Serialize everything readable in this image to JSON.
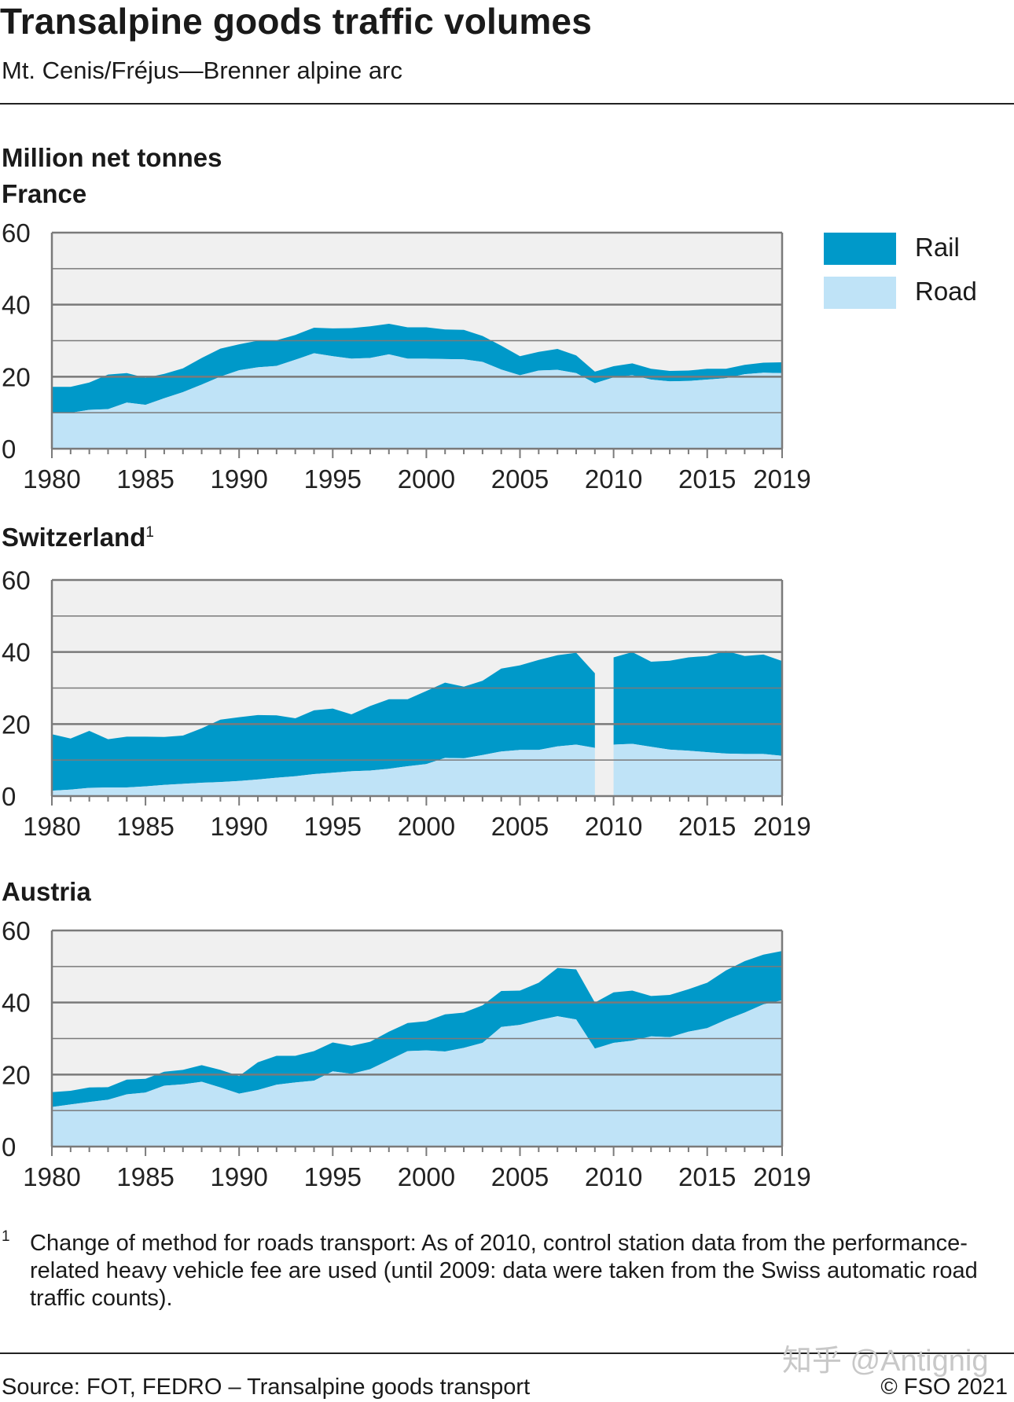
{
  "title": "Transalpine goods traffic volumes",
  "subtitle": "Mt. Cenis/Fréjus—Brenner alpine arc",
  "unit_label": "Million net tonnes",
  "colors": {
    "rail": "#0099c9",
    "road": "#bfe3f7",
    "plot_bg": "#f0f0f0",
    "grid": "#7a7a7a"
  },
  "legend": [
    {
      "key": "rail",
      "label": "Rail"
    },
    {
      "key": "road",
      "label": "Road"
    }
  ],
  "footnote_mark": "1",
  "footnote": "Change of method for roads transport: As of 2010, control station data from the performance-related heavy vehicle fee are used (until 2009: data were taken from the Swiss automatic road traffic counts).",
  "source": "Source: FOT, FEDRO – Transalpine goods transport",
  "copyright": "© FSO 2021",
  "watermark": "知乎 @Antignig",
  "chart_data": [
    {
      "type": "area",
      "stacked": true,
      "title": "France",
      "footnote_ref": "",
      "ylabel": "Million net tonnes",
      "ylim": [
        0,
        60
      ],
      "yticks": [
        0,
        20,
        40,
        60
      ],
      "xticks": [
        1980,
        1985,
        1990,
        1995,
        2000,
        2005,
        2010,
        2015,
        2019
      ],
      "grid": true,
      "legend_position": "right",
      "x": [
        1980,
        1981,
        1982,
        1983,
        1984,
        1985,
        1986,
        1987,
        1988,
        1989,
        1990,
        1991,
        1992,
        1993,
        1994,
        1995,
        1996,
        1997,
        1998,
        1999,
        2000,
        2001,
        2002,
        2003,
        2004,
        2005,
        2006,
        2007,
        2008,
        2009,
        2010,
        2011,
        2012,
        2013,
        2014,
        2015,
        2016,
        2017,
        2018,
        2019
      ],
      "series": [
        {
          "name": "Road",
          "values": [
            10,
            10,
            10.8,
            11,
            12.8,
            12.2,
            14,
            15.7,
            17.8,
            20,
            21.8,
            22.6,
            23,
            24.7,
            26.5,
            25.7,
            25,
            25.2,
            26.2,
            25,
            25,
            24.9,
            24.8,
            24.1,
            22,
            20.4,
            21.7,
            21.9,
            21,
            18.2,
            19.8,
            20.4,
            19.2,
            18.7,
            18.8,
            19.2,
            19.6,
            20.7,
            21.1,
            21
          ]
        },
        {
          "name": "Rail",
          "values": [
            7.2,
            7.2,
            7.6,
            9.6,
            8.2,
            7.5,
            6.8,
            6.6,
            7.4,
            7.8,
            7.2,
            7.4,
            7.1,
            6.9,
            7.1,
            7.7,
            8.5,
            8.8,
            8.5,
            8.7,
            8.7,
            8.2,
            8.2,
            7.2,
            6.6,
            5.3,
            5.2,
            5.8,
            4.9,
            3.2,
            3.1,
            3.3,
            3,
            2.9,
            2.9,
            3,
            2.6,
            2.6,
            2.8,
            3
          ]
        }
      ]
    },
    {
      "type": "area",
      "stacked": true,
      "title": "Switzerland",
      "footnote_ref": "1",
      "ylim": [
        0,
        60
      ],
      "yticks": [
        0,
        20,
        40,
        60
      ],
      "xticks": [
        1980,
        1985,
        1990,
        1995,
        2000,
        2005,
        2010,
        2015,
        2019
      ],
      "grid": true,
      "break_between": [
        2009,
        2010
      ],
      "x": [
        1980,
        1981,
        1982,
        1983,
        1984,
        1985,
        1986,
        1987,
        1988,
        1989,
        1990,
        1991,
        1992,
        1993,
        1994,
        1995,
        1996,
        1997,
        1998,
        1999,
        2000,
        2001,
        2002,
        2003,
        2004,
        2005,
        2006,
        2007,
        2008,
        2009,
        2010,
        2011,
        2012,
        2013,
        2014,
        2015,
        2016,
        2017,
        2018,
        2019
      ],
      "series": [
        {
          "name": "Road",
          "values": [
            1.5,
            1.8,
            2.3,
            2.4,
            2.4,
            2.7,
            3.1,
            3.4,
            3.7,
            3.9,
            4.2,
            4.6,
            5.1,
            5.5,
            6.1,
            6.5,
            6.9,
            7.1,
            7.6,
            8.3,
            8.9,
            10.6,
            10.5,
            11.4,
            12.4,
            12.8,
            12.8,
            13.8,
            14.3,
            13.4,
            14.3,
            14.5,
            13.7,
            12.9,
            12.6,
            12.2,
            11.8,
            11.7,
            11.7,
            11.2
          ]
        },
        {
          "name": "Rail",
          "values": [
            15.7,
            14.2,
            15.8,
            13.4,
            14.1,
            13.8,
            13.3,
            13.4,
            15.1,
            17.3,
            17.7,
            17.9,
            17.3,
            16.1,
            17.7,
            17.8,
            15.8,
            17.9,
            19.3,
            18.6,
            20.3,
            20.9,
            19.9,
            20.6,
            23,
            23.5,
            25,
            25.3,
            25.5,
            20.7,
            24.2,
            25.5,
            23.6,
            24.7,
            25.9,
            26.7,
            28.5,
            27.2,
            27.6,
            26.3
          ]
        }
      ]
    },
    {
      "type": "area",
      "stacked": true,
      "title": "Austria",
      "footnote_ref": "",
      "ylim": [
        0,
        60
      ],
      "yticks": [
        0,
        20,
        40,
        60
      ],
      "xticks": [
        1980,
        1985,
        1990,
        1995,
        2000,
        2005,
        2010,
        2015,
        2019
      ],
      "grid": true,
      "x": [
        1980,
        1981,
        1982,
        1983,
        1984,
        1985,
        1986,
        1987,
        1988,
        1989,
        1990,
        1991,
        1992,
        1993,
        1994,
        1995,
        1996,
        1997,
        1998,
        1999,
        2000,
        2001,
        2002,
        2003,
        2004,
        2005,
        2006,
        2007,
        2008,
        2009,
        2010,
        2011,
        2012,
        2013,
        2014,
        2015,
        2016,
        2017,
        2018,
        2019
      ],
      "series": [
        {
          "name": "Road",
          "values": [
            11,
            11.7,
            12.4,
            13,
            14.5,
            15,
            16.9,
            17.3,
            18,
            16.4,
            14.7,
            15.7,
            17.2,
            17.8,
            18.3,
            20.9,
            20.2,
            21.5,
            24,
            26.5,
            26.7,
            26.4,
            27.4,
            28.8,
            33.2,
            33.8,
            35.1,
            36.2,
            35.3,
            27.2,
            28.8,
            29.4,
            30.6,
            30.4,
            31.9,
            32.9,
            35.2,
            37.2,
            39.5,
            40.6
          ]
        },
        {
          "name": "Rail",
          "values": [
            4.1,
            3.8,
            4,
            3.5,
            4.1,
            3.8,
            3.9,
            4,
            4.6,
            4.9,
            4.9,
            7.7,
            8,
            7.4,
            8.2,
            8,
            7.8,
            7.6,
            7.9,
            7.8,
            8.1,
            10.3,
            9.8,
            10.4,
            10,
            9.5,
            10.4,
            13.4,
            13.9,
            12.8,
            14,
            13.9,
            11.2,
            11.7,
            11.8,
            12.6,
            13.7,
            14.3,
            13.8,
            13.7
          ]
        }
      ]
    }
  ]
}
